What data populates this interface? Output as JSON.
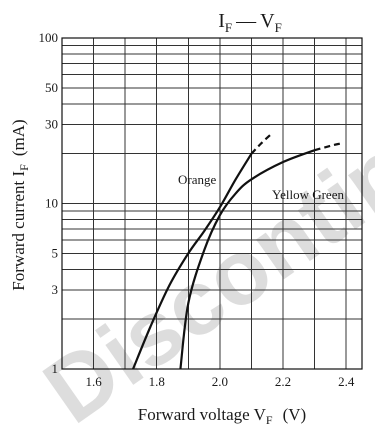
{
  "chart_data": {
    "type": "line",
    "title_main": "I",
    "title_main_sub": "F",
    "title_dash": "—",
    "title_second": "V",
    "title_second_sub": "F",
    "xlabel_text": "Forward voltage  V",
    "xlabel_sub": "F",
    "xlabel_unit": "(V)",
    "ylabel_text": "Forward current  I",
    "ylabel_sub": "F",
    "ylabel_unit": "(mA)",
    "xlim": [
      1.5,
      2.45
    ],
    "ylim": [
      1,
      100
    ],
    "yscale": "log",
    "grid": true,
    "xticks": [
      {
        "value": 1.6,
        "label": "1.6"
      },
      {
        "value": 1.8,
        "label": "1.8"
      },
      {
        "value": 2.0,
        "label": "2.0"
      },
      {
        "value": 2.2,
        "label": "2.2"
      },
      {
        "value": 2.4,
        "label": "2.4"
      }
    ],
    "yticks": [
      {
        "value": 1,
        "label": "1"
      },
      {
        "value": 3,
        "label": "3"
      },
      {
        "value": 5,
        "label": "5"
      },
      {
        "value": 10,
        "label": "10"
      },
      {
        "value": 30,
        "label": "30"
      },
      {
        "value": 50,
        "label": "50"
      },
      {
        "value": 100,
        "label": "100"
      }
    ],
    "series": [
      {
        "name": "Orange",
        "x": [
          1.725,
          1.78,
          1.84,
          1.9,
          1.95,
          2.0,
          2.05,
          2.1
        ],
        "values": [
          1,
          1.8,
          3.2,
          5.0,
          6.8,
          9.5,
          14,
          20
        ],
        "x_ext": [
          2.1,
          2.13,
          2.16
        ],
        "values_ext": [
          20,
          23,
          26
        ]
      },
      {
        "name": "Yellow Green",
        "x": [
          1.875,
          1.9,
          1.95,
          2.0,
          2.05,
          2.1,
          2.2,
          2.3
        ],
        "values": [
          1,
          2.5,
          5.2,
          8.5,
          11.5,
          14,
          17.8,
          21
        ],
        "x_ext": [
          2.3,
          2.35,
          2.38
        ],
        "values_ext": [
          21,
          22.3,
          23
        ]
      }
    ]
  },
  "watermark": "Discontinued: following for tv"
}
